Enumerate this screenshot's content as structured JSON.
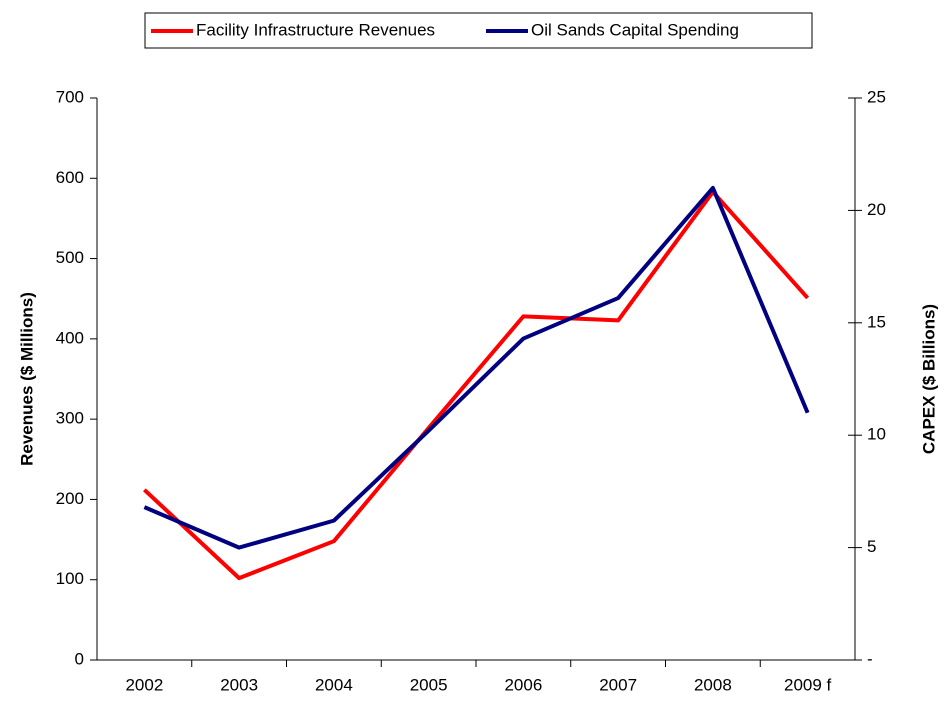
{
  "chart_data": {
    "type": "line",
    "categories": [
      "2002",
      "2003",
      "2004",
      "2005",
      "2006",
      "2007",
      "2008",
      "2009 f"
    ],
    "series": [
      {
        "name": "Facility Infrastructure Revenues",
        "color": "#ff0000",
        "values": [
          212,
          102,
          148,
          289,
          428,
          423,
          583,
          451
        ]
      },
      {
        "name": "Oil Sands Capital Spending",
        "color": "#000080",
        "axis": "y2",
        "values": [
          6.8,
          5.0,
          6.2,
          10.2,
          14.3,
          16.1,
          21.0,
          11.0
        ]
      }
    ],
    "ylabel": "Revenues ($ Millions)",
    "y2label": "CAPEX ($ Billions)",
    "ylim": [
      0,
      700
    ],
    "yticks": [
      0,
      100,
      200,
      300,
      400,
      500,
      600,
      700
    ],
    "y2lim": [
      0,
      25
    ],
    "y2ticks": [
      {
        "value": 0,
        "label": "-"
      },
      5,
      10,
      15,
      20,
      25
    ],
    "grid": false,
    "legend": "top"
  }
}
